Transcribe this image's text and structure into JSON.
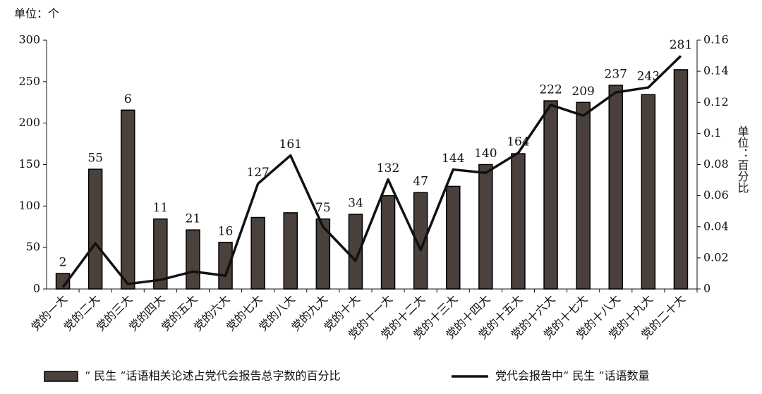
{
  "chart_data": {
    "type": "bar-line",
    "y_unit": "单位：个",
    "y2_unit": "单位：百分比",
    "categories": [
      "党的一大",
      "党的二大",
      "党的三大",
      "党的四大",
      "党的五大",
      "党的六大",
      "党的七大",
      "党的八大",
      "党的九大",
      "党的十大",
      "党的十一大",
      "党的十二大",
      "党的十三大",
      "党的十四大",
      "党的十五大",
      "党的十六大",
      "党的十七大",
      "党的十八大",
      "党的十九大",
      "党的二十大"
    ],
    "series": [
      {
        "name": "“ 民生 ”话语相关论述占党代会报告总字数的百分比",
        "type": "bar",
        "axis": "y2",
        "color": "#4a403c",
        "values": [
          0.01,
          0.077,
          0.115,
          0.045,
          0.038,
          0.03,
          0.046,
          0.049,
          0.045,
          0.048,
          0.06,
          0.062,
          0.066,
          0.08,
          0.087,
          0.121,
          0.12,
          0.131,
          0.125,
          0.141
        ]
      },
      {
        "name": "党代会报告中“ 民生 ”话语数量",
        "type": "line",
        "axis": "y",
        "color": "#111111",
        "values": [
          2,
          55,
          6,
          11,
          21,
          16,
          127,
          161,
          75,
          34,
          132,
          47,
          144,
          140,
          164,
          222,
          209,
          237,
          243,
          281
        ]
      }
    ],
    "ylim": [
      0,
      300
    ],
    "yticks": [
      0,
      50,
      100,
      150,
      200,
      250,
      300
    ],
    "y2lim": [
      0,
      0.16
    ],
    "y2ticks": [
      0,
      0.02,
      0.04,
      0.06,
      0.08,
      0.1,
      0.12,
      0.14,
      0.16
    ]
  }
}
